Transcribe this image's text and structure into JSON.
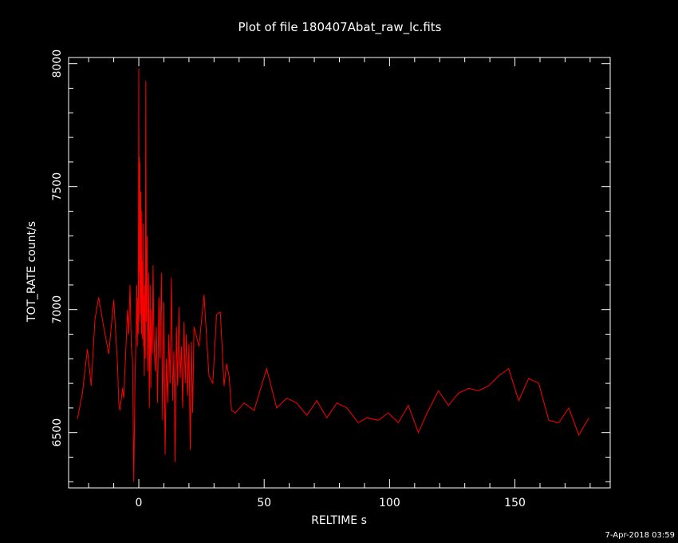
{
  "chart_data": {
    "type": "line",
    "title": "Plot of file 180407Abat_raw_lc.fits",
    "xlabel": "RELTIME  s",
    "ylabel": "TOT_RATE  count/s",
    "xlim": [
      -28,
      188
    ],
    "ylim": [
      6275,
      8025
    ],
    "x_ticks": [
      0,
      50,
      100,
      150
    ],
    "y_ticks": [
      6500,
      7000,
      7500,
      8000
    ],
    "grid": false,
    "legend": "none",
    "line_color": "#ff0000",
    "series": [
      {
        "x": [
          -24.5,
          -22.5,
          -20.5,
          -19.0,
          -17.5,
          -16.0,
          -14.0,
          -12.0,
          -10.0,
          -8.5,
          -8.0,
          -7.5,
          -6.5,
          -6.0,
          -5.5,
          -4.5,
          -4.0,
          -3.5,
          -3.0,
          -2.5,
          -2.0,
          -1.5,
          -1.0,
          -0.8,
          -0.6,
          -0.4,
          -0.2,
          0.0,
          0.1,
          0.2,
          0.3,
          0.4,
          0.5,
          0.6,
          0.7,
          0.8,
          0.9,
          1.0,
          1.1,
          1.2,
          1.3,
          1.4,
          1.5,
          1.6,
          1.7,
          1.8,
          1.9,
          2.0,
          2.2,
          2.4,
          2.6,
          2.8,
          3.0,
          3.3,
          3.6,
          3.9,
          4.2,
          4.5,
          4.8,
          5.1,
          5.4,
          5.7,
          6.0,
          6.5,
          7.0,
          7.5,
          8.0,
          8.5,
          9.0,
          9.5,
          10.0,
          10.5,
          11.0,
          11.5,
          12.0,
          12.5,
          13.0,
          13.5,
          14.0,
          14.5,
          15.0,
          15.5,
          16.0,
          16.5,
          17.0,
          17.5,
          18.0,
          18.5,
          19.0,
          19.5,
          20.0,
          20.5,
          21.0,
          21.5,
          22.0,
          24.0,
          26.0,
          28.0,
          29.5,
          31.0,
          32.5,
          34.0,
          35.0,
          36.0,
          37.0,
          38.5,
          42.0,
          46.0,
          51.0,
          55.0,
          59.0,
          63.0,
          67.0,
          71.0,
          75.0,
          79.0,
          83.0,
          87.5,
          91.0,
          95.5,
          99.5,
          103.5,
          107.5,
          111.5,
          115.0,
          119.5,
          123.5,
          127.5,
          131.5,
          135.5,
          139.5,
          143.5,
          147.5,
          151.5,
          155.5,
          159.5,
          163.5,
          167.5,
          171.5,
          175.5,
          179.5
        ],
        "y": [
          6555,
          6660,
          6840,
          6690,
          6960,
          7050,
          6930,
          6820,
          7040,
          6780,
          6620,
          6590,
          6680,
          6640,
          6760,
          7000,
          6900,
          7100,
          6850,
          6800,
          6300,
          6720,
          6950,
          7100,
          6850,
          7050,
          6900,
          7980,
          7150,
          7620,
          6950,
          7600,
          7200,
          7300,
          6980,
          7480,
          7050,
          7180,
          6900,
          7400,
          7050,
          7200,
          6880,
          7000,
          6950,
          7350,
          6850,
          7060,
          6730,
          7100,
          6800,
          7930,
          6950,
          7300,
          6750,
          7150,
          6600,
          7100,
          6680,
          7000,
          6820,
          7180,
          6900,
          6750,
          6930,
          6620,
          7050,
          6800,
          7150,
          6550,
          7030,
          6410,
          6800,
          6620,
          6900,
          6700,
          7130,
          6630,
          6830,
          6380,
          6930,
          6690,
          7010,
          6720,
          6850,
          6600,
          6950,
          6700,
          6900,
          6650,
          6860,
          6430,
          6870,
          6580,
          6930,
          6850,
          7060,
          6730,
          6700,
          6980,
          6990,
          6690,
          6780,
          6730,
          6590,
          6580,
          6620,
          6590,
          6760,
          6600,
          6640,
          6620,
          6570,
          6630,
          6560,
          6620,
          6600,
          6540,
          6560,
          6550,
          6580,
          6540,
          6610,
          6500,
          6580,
          6670,
          6610,
          6660,
          6680,
          6670,
          6690,
          6730,
          6760,
          6630,
          6720,
          6700,
          6550,
          6540,
          6600,
          6490,
          6560
        ]
      }
    ]
  },
  "footer": {
    "timestamp": "7-Apr-2018 03:59"
  }
}
